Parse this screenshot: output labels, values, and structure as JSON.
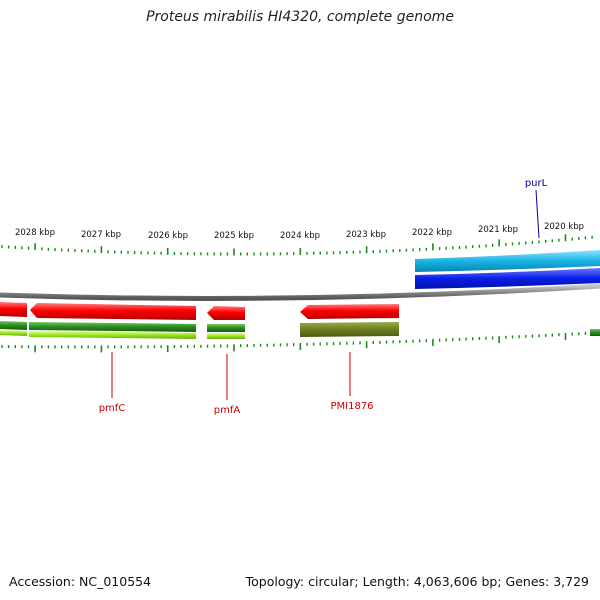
{
  "title": "Proteus mirabilis HI4320, complete genome",
  "footer": {
    "accession": "Accession: NC_010554",
    "summary": "Topology: circular; Length: 4,063,606 bp; Genes: 3,729"
  },
  "colors": {
    "forward_gene": "#0a1ee6",
    "forward_gene_alt": "#19b4e6",
    "reverse_gene": "#ff0000",
    "cds_green": "#2a8a1e",
    "cds_lightgreen": "#9ae61e",
    "olive": "#6b7d1e",
    "backbone": "#888888",
    "tick": "#1a8a1a",
    "label_red": "#cc0000",
    "label_blue": "#00009a"
  },
  "scale_labels": [
    "2028 kbp",
    "2027 kbp",
    "2026 kbp",
    "2025 kbp",
    "2024 kbp",
    "2023 kbp",
    "2022 kbp",
    "2021 kbp",
    "2020 kbp"
  ],
  "gene_labels": [
    {
      "name": "pmfC",
      "strand": "reverse"
    },
    {
      "name": "pmfA",
      "strand": "reverse"
    },
    {
      "name": "PMI1876",
      "strand": "reverse"
    },
    {
      "name": "purL",
      "strand": "forward"
    }
  ]
}
